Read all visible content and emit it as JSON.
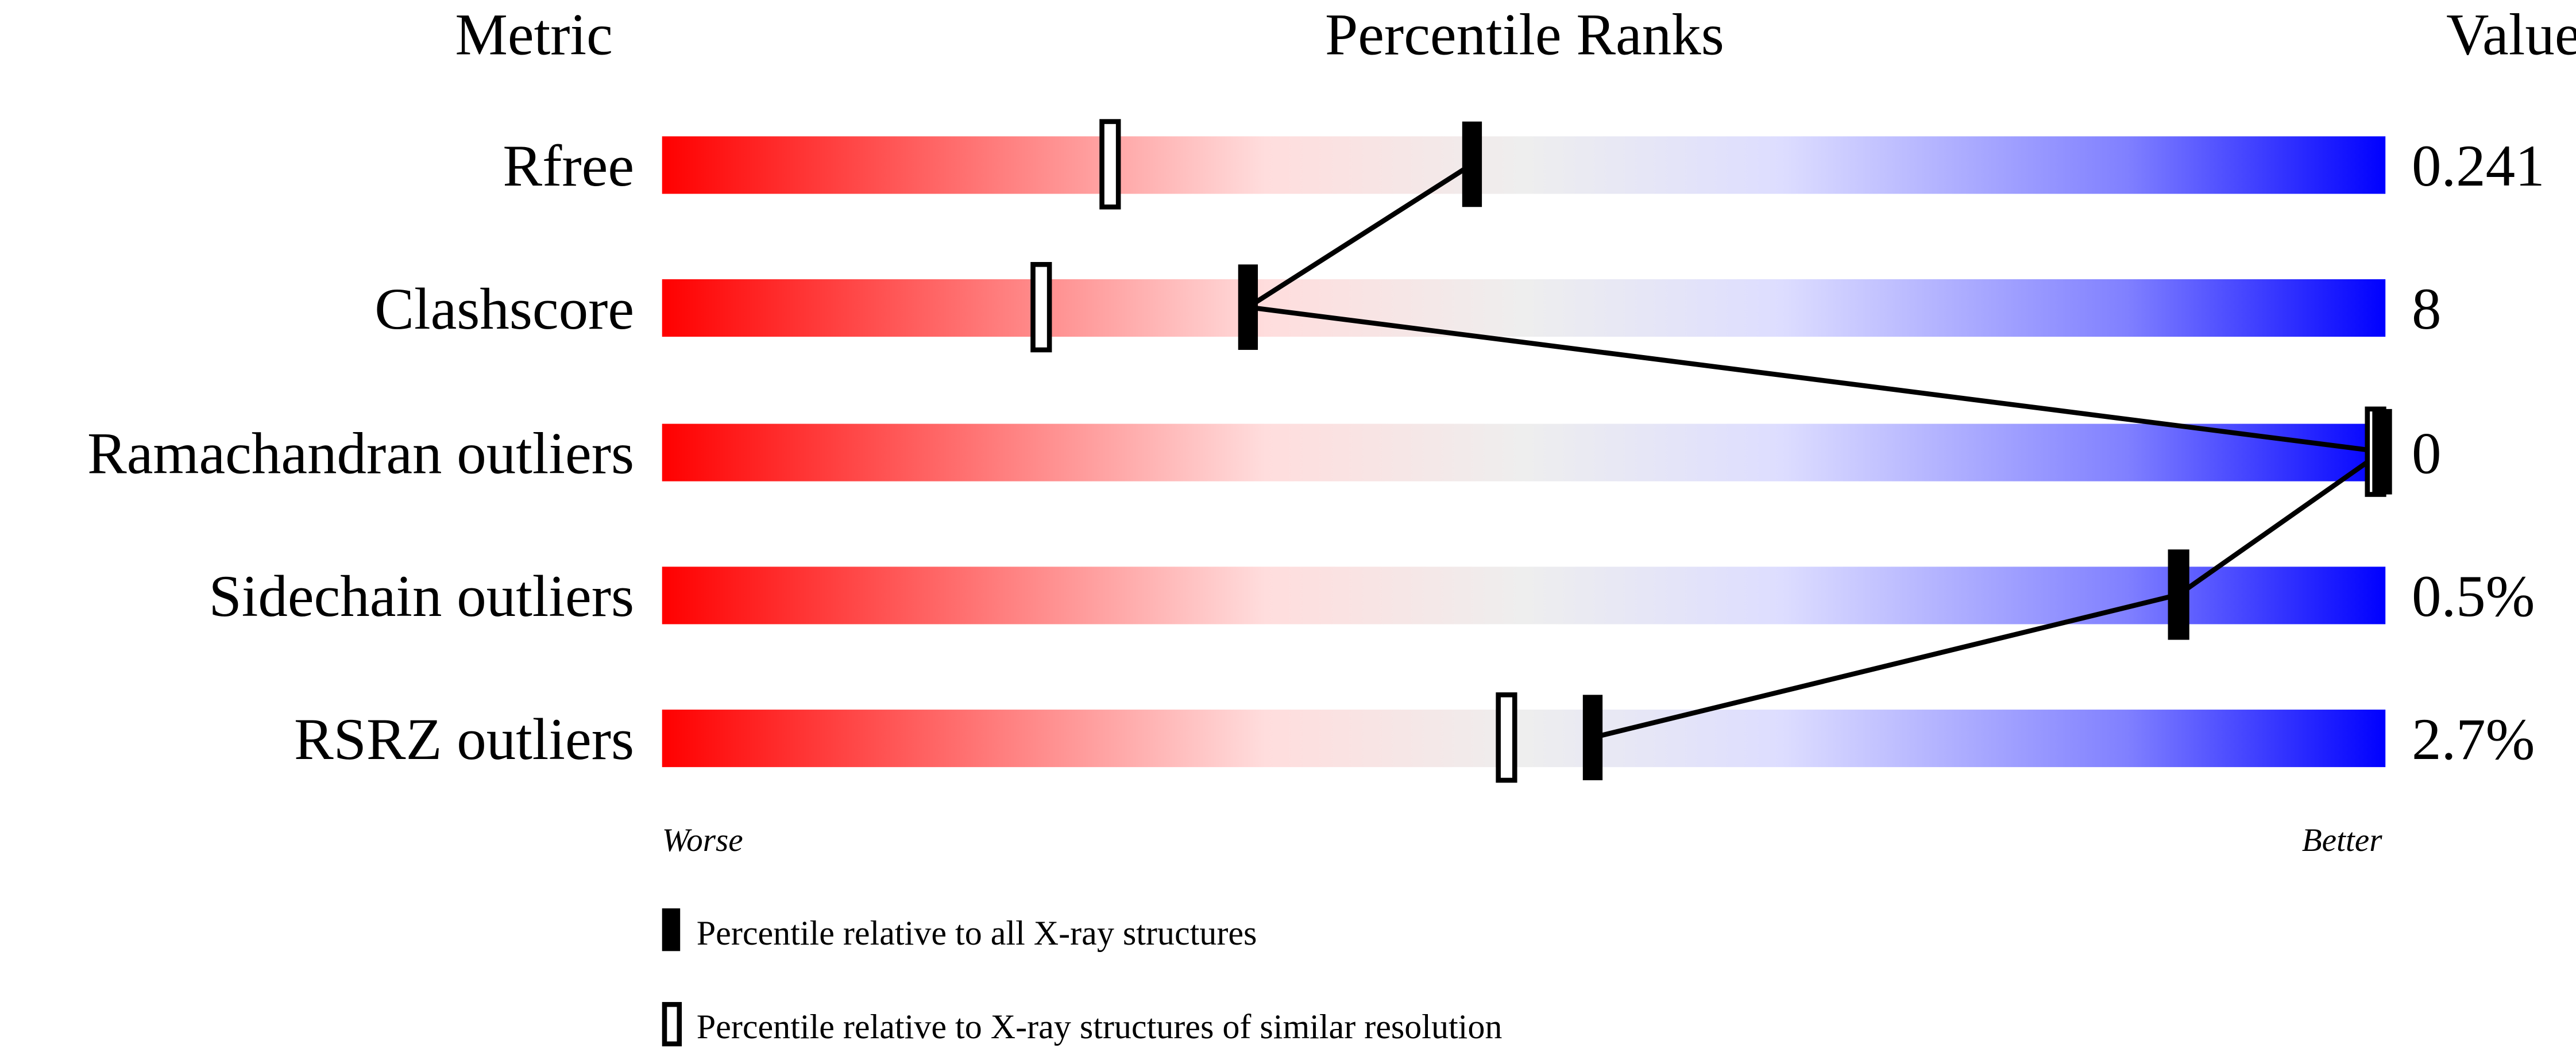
{
  "chart_data": {
    "type": "bar",
    "headers": {
      "metric": "Metric",
      "ranks": "Percentile Ranks",
      "value": "Value"
    },
    "xlim": [
      0,
      100
    ],
    "axis_labels": {
      "left": "Worse",
      "right": "Better"
    },
    "categories": [
      "Rfree",
      "Clashscore",
      "Ramachandran outliers",
      "Sidechain outliers",
      "RSRZ outliers"
    ],
    "values_text": [
      "0.241",
      "8",
      "0",
      "0.5%",
      "2.7%"
    ],
    "series": [
      {
        "name": "Percentile relative to all X-ray structures",
        "marker": "filled",
        "values": [
          47,
          34,
          100,
          88,
          54
        ]
      },
      {
        "name": "Percentile relative to X-ray structures of similar resolution",
        "marker": "open",
        "values": [
          26,
          22,
          100,
          88,
          49
        ]
      }
    ],
    "gradient_colors": [
      "#ff0000",
      "#ff8080",
      "#ffdddd",
      "#eeeeee",
      "#ddddff",
      "#8080ff",
      "#0000ff"
    ],
    "legend_placement": "bottom"
  }
}
